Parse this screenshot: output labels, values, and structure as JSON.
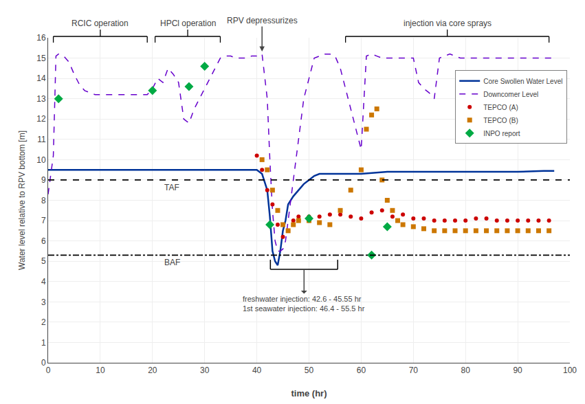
{
  "chart_data": {
    "type": "line",
    "xlabel": "time (hr)",
    "ylabel": "Water level relative to RPV bottom [m]",
    "xlim": [
      0,
      100
    ],
    "ylim": [
      0,
      16
    ],
    "xticks": [
      0,
      10,
      20,
      30,
      40,
      50,
      60,
      70,
      80,
      90,
      100
    ],
    "yticks": [
      0,
      1,
      2,
      3,
      4,
      5,
      6,
      7,
      8,
      9,
      10,
      11,
      12,
      13,
      14,
      15,
      16
    ],
    "grid": true,
    "legend": "upper right",
    "series": [
      {
        "name": "Core Swollen Water Level",
        "type": "line",
        "color": "#003399",
        "line_style": "solid",
        "x": [
          0,
          1,
          2,
          5,
          10,
          15,
          20,
          25,
          30,
          35,
          38,
          39,
          40,
          41,
          42,
          42.5,
          43,
          43.5,
          44,
          44.5,
          45,
          45.5,
          46,
          47,
          48,
          49,
          50,
          51,
          52,
          53,
          55,
          57,
          58,
          59,
          60,
          65,
          70,
          75,
          80,
          85,
          90,
          95,
          97
        ],
        "values": [
          9.5,
          9.5,
          9.5,
          9.5,
          9.5,
          9.5,
          9.5,
          9.5,
          9.5,
          9.5,
          9.5,
          9.5,
          9.5,
          9.3,
          8.5,
          7.2,
          5.5,
          5.0,
          4.8,
          5.5,
          6.5,
          7.0,
          7.8,
          8.2,
          8.5,
          8.8,
          9.0,
          9.2,
          9.3,
          9.3,
          9.3,
          9.3,
          9.3,
          9.3,
          9.3,
          9.4,
          9.4,
          9.4,
          9.4,
          9.4,
          9.4,
          9.45,
          9.45
        ]
      },
      {
        "name": "Downcomer Level",
        "type": "line",
        "color": "#6600cc",
        "line_style": "dashed",
        "x": [
          0,
          1,
          1.5,
          2,
          3,
          4,
          5,
          6,
          7,
          8,
          9,
          10,
          11,
          12,
          13,
          14,
          15,
          16,
          17,
          18,
          19,
          20,
          21,
          22,
          23,
          24,
          25,
          26,
          27,
          28,
          29,
          30,
          31,
          32,
          33,
          34,
          35,
          36,
          37,
          38,
          39,
          40,
          41,
          42,
          42.5,
          43,
          43.5,
          44,
          44.5,
          45,
          45.5,
          46,
          47,
          48,
          49,
          50,
          51,
          52,
          53,
          54,
          55,
          56,
          57,
          58,
          59,
          60,
          61,
          62,
          63,
          64,
          65,
          66,
          67,
          68,
          69,
          70,
          71,
          72,
          73,
          74,
          75,
          76,
          77,
          78,
          79,
          80,
          85,
          90,
          95,
          97
        ],
        "values": [
          8.3,
          10.2,
          15.1,
          15.2,
          15.1,
          14.8,
          14.2,
          13.7,
          13.4,
          13.3,
          13.2,
          13.2,
          13.2,
          13.2,
          13.2,
          13.2,
          13.2,
          13.2,
          13.2,
          13.2,
          13.2,
          13.5,
          14.0,
          13.8,
          14.5,
          14.2,
          13.8,
          12.0,
          11.8,
          12.5,
          13.0,
          13.5,
          14.0,
          14.5,
          15.0,
          15.1,
          15.1,
          15.0,
          15.0,
          15.0,
          15.1,
          15.1,
          15.2,
          13.0,
          10.0,
          7.5,
          6.0,
          5.5,
          5.5,
          5.6,
          6.0,
          7.0,
          9.0,
          11.0,
          13.0,
          14.0,
          15.0,
          15.1,
          15.2,
          15.2,
          15.1,
          14.5,
          13.5,
          12.5,
          11.5,
          10.5,
          15.1,
          15.2,
          15.1,
          15.0,
          15.0,
          15.0,
          15.0,
          15.0,
          15.0,
          15.0,
          13.8,
          13.5,
          13.3,
          13.0,
          15.0,
          15.1,
          15.2,
          15.1,
          15.0,
          15.0,
          15.0,
          15.0,
          15.0,
          15.0
        ]
      },
      {
        "name": "TEPCO (A)",
        "type": "scatter",
        "color": "#cc0000",
        "marker": "circle",
        "x": [
          40,
          41,
          42,
          43,
          44,
          45,
          46,
          47,
          48,
          50,
          52,
          54,
          56,
          58,
          60,
          62,
          64,
          66,
          68,
          70,
          72,
          74,
          76,
          78,
          80,
          82,
          84,
          86,
          88,
          90,
          92,
          94,
          96
        ],
        "values": [
          10.2,
          9.5,
          8.5,
          7.8,
          6.8,
          6.2,
          6.5,
          7.0,
          7.2,
          7.2,
          7.2,
          7.3,
          7.3,
          7.2,
          7.1,
          7.4,
          7.5,
          7.2,
          7.3,
          7.1,
          7.1,
          7.0,
          7.0,
          7.0,
          7.0,
          7.1,
          7.1,
          7.0,
          7.0,
          7.0,
          7.0,
          7.0,
          7.0
        ]
      },
      {
        "name": "TEPCO (B)",
        "type": "scatter",
        "color": "#cc7700",
        "marker": "square",
        "x": [
          41,
          42,
          43,
          44,
          45,
          46,
          47,
          48,
          50,
          52,
          54,
          56,
          58,
          60,
          61,
          62,
          63,
          64,
          65,
          66,
          67,
          68,
          70,
          72,
          74,
          76,
          78,
          80,
          82,
          84,
          86,
          88,
          90,
          92,
          94,
          96
        ],
        "values": [
          10.0,
          9.5,
          8.5,
          7.5,
          6.8,
          6.5,
          6.8,
          7.0,
          7.0,
          6.9,
          6.8,
          7.5,
          8.5,
          9.5,
          11.5,
          12.2,
          12.5,
          9.0,
          8.0,
          7.5,
          7.0,
          6.8,
          6.7,
          6.6,
          6.5,
          6.5,
          6.5,
          6.5,
          6.5,
          6.5,
          6.5,
          6.5,
          6.5,
          6.5,
          6.5,
          6.5
        ]
      },
      {
        "name": "INPO report",
        "type": "scatter",
        "color": "#00aa44",
        "marker": "diamond",
        "x": [
          2,
          20,
          27,
          30,
          42.5,
          50,
          62,
          65
        ],
        "values": [
          13.0,
          13.4,
          13.6,
          14.6,
          6.8,
          7.1,
          5.3,
          6.7
        ]
      }
    ],
    "reference_lines": [
      {
        "text": "TAF",
        "y": 9.0,
        "color": "black",
        "line_style": "dashed"
      },
      {
        "text": "BAF",
        "y": 5.3,
        "color": "black",
        "line_style": "dashdot"
      }
    ],
    "annotations": [
      {
        "type": "bracket",
        "text": "RCIC operation",
        "x": [
          1,
          19
        ]
      },
      {
        "type": "bracket",
        "text": "HPCl operation",
        "x": [
          20.5,
          33
        ]
      },
      {
        "type": "arrow",
        "text": "RPV depressurizes",
        "x": 41
      },
      {
        "type": "bracket",
        "text": "injection via core sprays",
        "x": [
          57,
          96
        ]
      },
      {
        "type": "injection",
        "text": [
          "freshwater injection: 42.6 - 45.55 hr",
          "1st seawater injection: 46.4 - 55.5 hr"
        ],
        "x": [
          42.6,
          55.5
        ],
        "y": 4.6
      }
    ]
  }
}
